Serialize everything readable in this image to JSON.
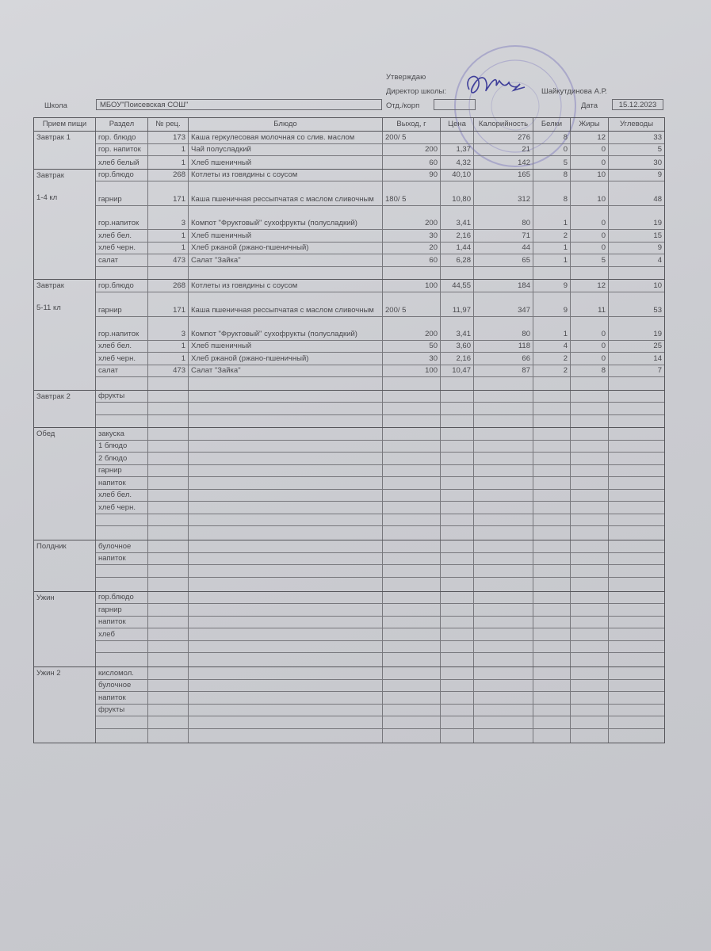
{
  "header": {
    "approve": "Утверждаю",
    "director_label": "Директор школы:",
    "director_name": "Шайкутдинова А.Р.",
    "school_label": "Школа",
    "school_value": "МБОУ\"Поисевская СОШ\"",
    "dept_label": "Отд./корп",
    "dept_value": "",
    "date_label": "Дата",
    "date_value": "15.12.2023",
    "stamp_color": "#8a86c0"
  },
  "columns": [
    "Прием пищи",
    "Раздел",
    "№ рец.",
    "Блюдо",
    "Выход, г",
    "Цена",
    "Калорийность",
    "Белки",
    "Жиры",
    "Углеводы"
  ],
  "groups": [
    {
      "meal": [
        "Завтрак 1"
      ],
      "rows": [
        [
          "гор. блюдо",
          "173",
          "Каша геркулесовая молочная со слив. маслом",
          "200/ 5",
          "",
          "276",
          "8",
          "12",
          "33"
        ],
        [
          "гор. напиток",
          "1",
          "Чай полусладкий",
          "200",
          "1,37",
          "21",
          "0",
          "0",
          "5"
        ],
        [
          "хлеб белый",
          "1",
          "Хлеб пшеничный",
          "60",
          "4,32",
          "142",
          "5",
          "0",
          "30"
        ]
      ]
    },
    {
      "meal": [
        "Завтрак",
        "1-4 кл"
      ],
      "rows": [
        [
          "гор.блюдо",
          "268",
          "Котлеты из говядины с соусом",
          "90",
          "40,10",
          "165",
          "8",
          "10",
          "9"
        ],
        [
          "гарнир",
          "171",
          "Каша пшеничная рессыпчатая с маслом сливочным",
          "180/ 5",
          "10,80",
          "312",
          "8",
          "10",
          "48"
        ],
        [
          "гор.напиток",
          "3",
          "Компот \"Фруктовый\" сухофрукты (полусладкий)",
          "200",
          "3,41",
          "80",
          "1",
          "0",
          "19"
        ],
        [
          "хлеб бел.",
          "1",
          "Хлеб пшеничный",
          "30",
          "2,16",
          "71",
          "2",
          "0",
          "15"
        ],
        [
          "хлеб черн.",
          "1",
          "Хлеб ржаной (ржано-пшеничный)",
          "20",
          "1,44",
          "44",
          "1",
          "0",
          "9"
        ],
        [
          "салат",
          "473",
          "Салат \"Зайка\"",
          "60",
          "6,28",
          "65",
          "1",
          "5",
          "4"
        ],
        [
          "",
          "",
          "",
          "",
          "",
          "",
          "",
          "",
          ""
        ]
      ]
    },
    {
      "meal": [
        "Завтрак",
        "5-11 кл"
      ],
      "rows": [
        [
          "гор.блюдо",
          "268",
          "Котлеты из говядины с соусом",
          "100",
          "44,55",
          "184",
          "9",
          "12",
          "10"
        ],
        [
          "гарнир",
          "171",
          "Каша пшеничная рессыпчатая с маслом сливочным",
          "200/ 5",
          "11,97",
          "347",
          "9",
          "11",
          "53"
        ],
        [
          "гор.напиток",
          "3",
          "Компот \"Фруктовый\" сухофрукты (полусладкий)",
          "200",
          "3,41",
          "80",
          "1",
          "0",
          "19"
        ],
        [
          "хлеб бел.",
          "1",
          "Хлеб пшеничный",
          "50",
          "3,60",
          "118",
          "4",
          "0",
          "25"
        ],
        [
          "хлеб черн.",
          "1",
          "Хлеб ржаной (ржано-пшеничный)",
          "30",
          "2,16",
          "66",
          "2",
          "0",
          "14"
        ],
        [
          "салат",
          "473",
          "Салат \"Зайка\"",
          "100",
          "10,47",
          "87",
          "2",
          "8",
          "7"
        ],
        [
          "",
          "",
          "",
          "",
          "",
          "",
          "",
          "",
          ""
        ]
      ]
    },
    {
      "meal": [
        "Завтрак 2"
      ],
      "rows": [
        [
          "фрукты",
          "",
          "",
          "",
          "",
          "",
          "",
          "",
          ""
        ],
        [
          "",
          "",
          "",
          "",
          "",
          "",
          "",
          "",
          ""
        ],
        [
          "",
          "",
          "",
          "",
          "",
          "",
          "",
          "",
          ""
        ]
      ]
    },
    {
      "meal": [
        "Обед"
      ],
      "rows": [
        [
          "закуска",
          "",
          "",
          "",
          "",
          "",
          "",
          "",
          ""
        ],
        [
          "1 блюдо",
          "",
          "",
          "",
          "",
          "",
          "",
          "",
          ""
        ],
        [
          "2 блюдо",
          "",
          "",
          "",
          "",
          "",
          "",
          "",
          ""
        ],
        [
          "гарнир",
          "",
          "",
          "",
          "",
          "",
          "",
          "",
          ""
        ],
        [
          "напиток",
          "",
          "",
          "",
          "",
          "",
          "",
          "",
          ""
        ],
        [
          "хлеб бел.",
          "",
          "",
          "",
          "",
          "",
          "",
          "",
          ""
        ],
        [
          "хлеб черн.",
          "",
          "",
          "",
          "",
          "",
          "",
          "",
          ""
        ],
        [
          "",
          "",
          "",
          "",
          "",
          "",
          "",
          "",
          ""
        ],
        [
          "",
          "",
          "",
          "",
          "",
          "",
          "",
          "",
          ""
        ]
      ]
    },
    {
      "meal": [
        "Полдник"
      ],
      "rows": [
        [
          "булочное",
          "",
          "",
          "",
          "",
          "",
          "",
          "",
          ""
        ],
        [
          "напиток",
          "",
          "",
          "",
          "",
          "",
          "",
          "",
          ""
        ],
        [
          "",
          "",
          "",
          "",
          "",
          "",
          "",
          "",
          ""
        ],
        [
          "",
          "",
          "",
          "",
          "",
          "",
          "",
          "",
          ""
        ]
      ]
    },
    {
      "meal": [
        "Ужин"
      ],
      "rows": [
        [
          "гор.блюдо",
          "",
          "",
          "",
          "",
          "",
          "",
          "",
          ""
        ],
        [
          "гарнир",
          "",
          "",
          "",
          "",
          "",
          "",
          "",
          ""
        ],
        [
          "напиток",
          "",
          "",
          "",
          "",
          "",
          "",
          "",
          ""
        ],
        [
          "хлеб",
          "",
          "",
          "",
          "",
          "",
          "",
          "",
          ""
        ],
        [
          "",
          "",
          "",
          "",
          "",
          "",
          "",
          "",
          ""
        ],
        [
          "",
          "",
          "",
          "",
          "",
          "",
          "",
          "",
          ""
        ]
      ]
    },
    {
      "meal": [
        "Ужин 2"
      ],
      "rows": [
        [
          "кисломол.",
          "",
          "",
          "",
          "",
          "",
          "",
          "",
          ""
        ],
        [
          "булочное",
          "",
          "",
          "",
          "",
          "",
          "",
          "",
          ""
        ],
        [
          "напиток",
          "",
          "",
          "",
          "",
          "",
          "",
          "",
          ""
        ],
        [
          "фрукты",
          "",
          "",
          "",
          "",
          "",
          "",
          "",
          ""
        ],
        [
          "",
          "",
          "",
          "",
          "",
          "",
          "",
          "",
          ""
        ],
        [
          "",
          "",
          "",
          "",
          "",
          "",
          "",
          "",
          ""
        ]
      ]
    }
  ]
}
